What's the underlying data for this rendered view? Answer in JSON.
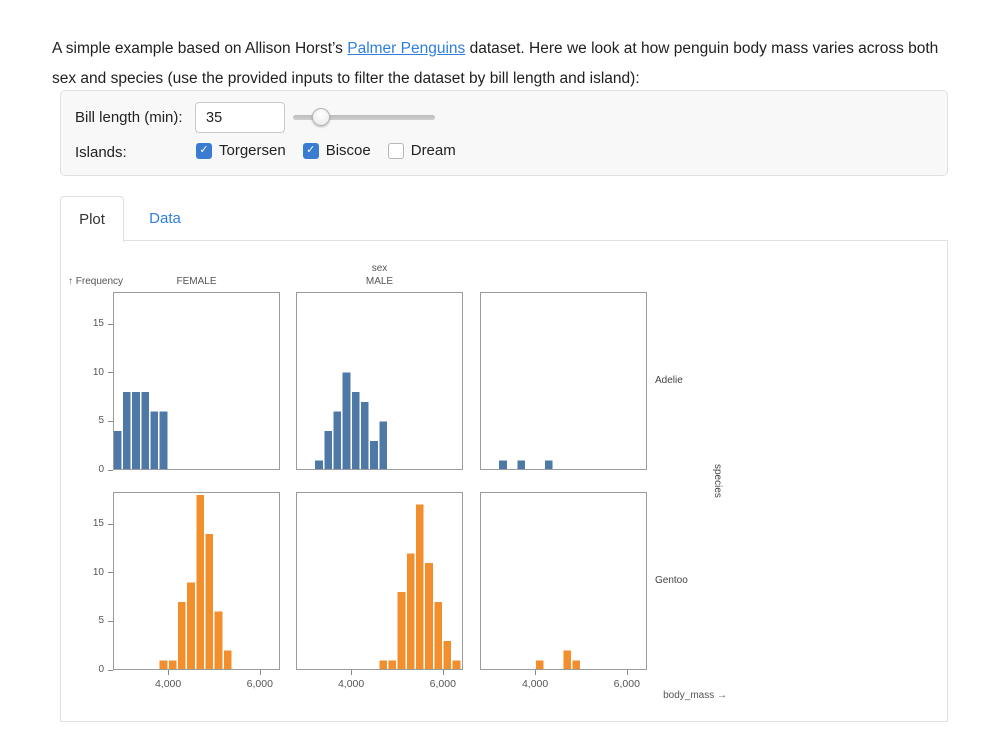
{
  "intro": {
    "text_before": "A simple example based on Allison Horst’s ",
    "link_text": "Palmer Penguins",
    "text_after": " dataset. Here we look at how penguin body mass varies across both sex and species (use the provided inputs to filter the dataset by bill length and island):"
  },
  "filters": {
    "bill_length_label": "Bill length (min):",
    "bill_length_value": "35",
    "slider_percent": 20,
    "islands_label": "Islands:",
    "islands": [
      {
        "label": "Torgersen",
        "checked": true
      },
      {
        "label": "Biscoe",
        "checked": true
      },
      {
        "label": "Dream",
        "checked": false
      }
    ]
  },
  "tabs": [
    {
      "label": "Plot",
      "active": true
    },
    {
      "label": "Data",
      "active": false
    }
  ],
  "colors": {
    "link_blue": "#2f7fe0",
    "checkbox_blue": "#3a7cd0",
    "adelie_blue": "#4e79a7",
    "gentoo_orange": "#f28e2b",
    "axis_text": "#555555",
    "frame_gray": "#9b9b9b"
  },
  "chart_data": {
    "type": "bar",
    "subtype": "faceted-histogram",
    "title": "",
    "xlabel": "body_mass →",
    "ylabel": "↑ Frequency",
    "col_facet_label": "sex",
    "row_facet_label": "species",
    "col_headers": [
      "FEMALE",
      "MALE",
      ""
    ],
    "row_headers": [
      "Adelie",
      "Gentoo"
    ],
    "x_domain": [
      2800,
      6440
    ],
    "y_domain": [
      0,
      18.3
    ],
    "x_ticks": [
      {
        "value": 4000,
        "label": "4,000"
      },
      {
        "value": 6000,
        "label": "6,000"
      }
    ],
    "y_ticks": [
      0,
      5,
      10,
      15
    ],
    "bin_width": 200,
    "grid": false,
    "legend": "none",
    "series_colors": {
      "Adelie": "#4e79a7",
      "Gentoo": "#f28e2b"
    },
    "facets": [
      {
        "row": "Adelie",
        "col": "FEMALE",
        "bins": [
          {
            "x0": 2800,
            "count": 4
          },
          {
            "x0": 3000,
            "count": 8
          },
          {
            "x0": 3200,
            "count": 8
          },
          {
            "x0": 3400,
            "count": 8
          },
          {
            "x0": 3600,
            "count": 6
          },
          {
            "x0": 3800,
            "count": 6
          }
        ]
      },
      {
        "row": "Adelie",
        "col": "MALE",
        "bins": [
          {
            "x0": 3200,
            "count": 1
          },
          {
            "x0": 3400,
            "count": 4
          },
          {
            "x0": 3600,
            "count": 6
          },
          {
            "x0": 3800,
            "count": 10
          },
          {
            "x0": 4000,
            "count": 8
          },
          {
            "x0": 4200,
            "count": 7
          },
          {
            "x0": 4400,
            "count": 3
          },
          {
            "x0": 4600,
            "count": 5
          }
        ]
      },
      {
        "row": "Adelie",
        "col": "",
        "bins": [
          {
            "x0": 3200,
            "count": 1
          },
          {
            "x0": 3600,
            "count": 1
          },
          {
            "x0": 4200,
            "count": 1
          }
        ]
      },
      {
        "row": "Gentoo",
        "col": "FEMALE",
        "bins": [
          {
            "x0": 3800,
            "count": 1
          },
          {
            "x0": 4000,
            "count": 1
          },
          {
            "x0": 4200,
            "count": 7
          },
          {
            "x0": 4400,
            "count": 9
          },
          {
            "x0": 4600,
            "count": 18
          },
          {
            "x0": 4800,
            "count": 14
          },
          {
            "x0": 5000,
            "count": 6
          },
          {
            "x0": 5200,
            "count": 2
          }
        ]
      },
      {
        "row": "Gentoo",
        "col": "MALE",
        "bins": [
          {
            "x0": 4600,
            "count": 1
          },
          {
            "x0": 4800,
            "count": 1
          },
          {
            "x0": 5000,
            "count": 8
          },
          {
            "x0": 5200,
            "count": 12
          },
          {
            "x0": 5400,
            "count": 17
          },
          {
            "x0": 5600,
            "count": 11
          },
          {
            "x0": 5800,
            "count": 7
          },
          {
            "x0": 6000,
            "count": 3
          },
          {
            "x0": 6200,
            "count": 1
          }
        ]
      },
      {
        "row": "Gentoo",
        "col": "",
        "bins": [
          {
            "x0": 4000,
            "count": 1
          },
          {
            "x0": 4600,
            "count": 2
          },
          {
            "x0": 4800,
            "count": 1
          }
        ]
      }
    ]
  }
}
